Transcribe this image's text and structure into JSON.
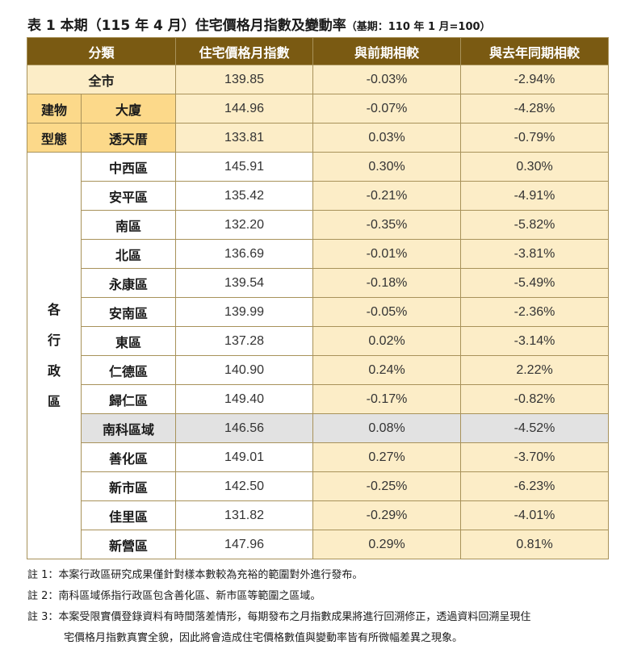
{
  "title": "表 1 本期（115 年 4 月）住宅價格月指數及變動率",
  "base_period": "（基期：110 年 1 月=100）",
  "headers": [
    "分類",
    "住宅價格月指數",
    "與前期相較",
    "與去年同期相較"
  ],
  "total_row": {
    "label": "全市",
    "index": "139.85",
    "mom": "-0.03%",
    "yoy": "-2.94%"
  },
  "type_group_label": [
    "建物",
    "型態"
  ],
  "type_rows": [
    {
      "label": "大廈",
      "index": "144.96",
      "mom": "-0.07%",
      "yoy": "-4.28%"
    },
    {
      "label": "透天厝",
      "index": "133.81",
      "mom": "0.03%",
      "yoy": "-0.79%"
    }
  ],
  "district_group_label": [
    "各",
    "行",
    "政",
    "區"
  ],
  "district_rows": [
    {
      "label": "中西區",
      "index": "145.91",
      "mom": "0.30%",
      "yoy": "0.30%"
    },
    {
      "label": "安平區",
      "index": "135.42",
      "mom": "-0.21%",
      "yoy": "-4.91%"
    },
    {
      "label": "南區",
      "index": "132.20",
      "mom": "-0.35%",
      "yoy": "-5.82%"
    },
    {
      "label": "北區",
      "index": "136.69",
      "mom": "-0.01%",
      "yoy": "-3.81%"
    },
    {
      "label": "永康區",
      "index": "139.54",
      "mom": "-0.18%",
      "yoy": "-5.49%"
    },
    {
      "label": "安南區",
      "index": "139.99",
      "mom": "-0.05%",
      "yoy": "-2.36%"
    },
    {
      "label": "東區",
      "index": "137.28",
      "mom": "0.02%",
      "yoy": "-3.14%"
    },
    {
      "label": "仁德區",
      "index": "140.90",
      "mom": "0.24%",
      "yoy": "2.22%"
    },
    {
      "label": "歸仁區",
      "index": "149.40",
      "mom": "-0.17%",
      "yoy": "-0.82%"
    },
    {
      "label": "南科區域",
      "index": "146.56",
      "mom": "0.08%",
      "yoy": "-4.52%",
      "highlight": true
    },
    {
      "label": "善化區",
      "index": "149.01",
      "mom": "0.27%",
      "yoy": "-3.70%"
    },
    {
      "label": "新市區",
      "index": "142.50",
      "mom": "-0.25%",
      "yoy": "-6.23%"
    },
    {
      "label": "佳里區",
      "index": "131.82",
      "mom": "-0.29%",
      "yoy": "-4.01%"
    },
    {
      "label": "新營區",
      "index": "147.96",
      "mom": "0.29%",
      "yoy": "0.81%"
    }
  ],
  "notes": [
    "註 1：本案行政區研究成果僅針對樣本數較為充裕的範圍對外進行發布。",
    "註 2：南科區域係指行政區包含善化區、新市區等範圍之區域。",
    "註 3：本案受限實價登錄資料有時間落差情形，每期發布之月指數成果將進行回溯修正，透過資料回溯呈現住",
    "宅價格月指數真實全貌，因此將會造成住宅價格數值與變動率皆有所微幅差異之現象。"
  ],
  "colors": {
    "header_bg": "#7a5a12",
    "light_bg": "#fcedc7",
    "type_bg": "#fcd98a",
    "highlight_bg": "#e2e2e2",
    "border": "#a8925a"
  }
}
